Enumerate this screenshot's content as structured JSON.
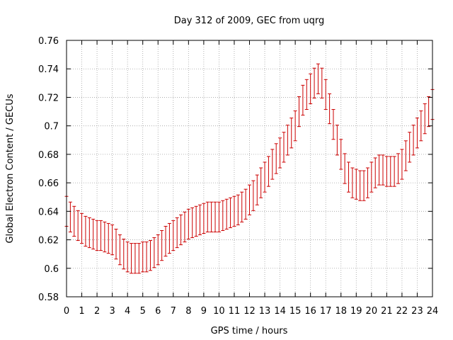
{
  "chart_data": {
    "type": "scatter",
    "title": "Day 312 of 2009, GEC from uqrg",
    "xlabel": "GPS time / hours",
    "ylabel": "Global Electron Content / GECUs",
    "xlim": [
      0,
      24
    ],
    "ylim": [
      0.58,
      0.76
    ],
    "xticks": [
      "0",
      "1",
      "2",
      "3",
      "4",
      "5",
      "6",
      "7",
      "8",
      "9",
      "10",
      "11",
      "12",
      "13",
      "14",
      "15",
      "16",
      "17",
      "18",
      "19",
      "20",
      "21",
      "22",
      "23",
      "24"
    ],
    "yticks": [
      "0.58",
      "0.6",
      "0.62",
      "0.64",
      "0.66",
      "0.68",
      "0.7",
      "0.72",
      "0.74",
      "0.76"
    ],
    "grid": true,
    "series_color": "#cc0000",
    "error_halfwidth": 0.0105,
    "x": [
      0,
      0.25,
      0.5,
      0.75,
      1,
      1.25,
      1.5,
      1.75,
      2,
      2.25,
      2.5,
      2.75,
      3,
      3.25,
      3.5,
      3.75,
      4,
      4.25,
      4.5,
      4.75,
      5,
      5.25,
      5.5,
      5.75,
      6,
      6.25,
      6.5,
      6.75,
      7,
      7.25,
      7.5,
      7.75,
      8,
      8.25,
      8.5,
      8.75,
      9,
      9.25,
      9.5,
      9.75,
      10,
      10.25,
      10.5,
      10.75,
      11,
      11.25,
      11.5,
      11.75,
      12,
      12.25,
      12.5,
      12.75,
      13,
      13.25,
      13.5,
      13.75,
      14,
      14.25,
      14.5,
      14.75,
      15,
      15.25,
      15.5,
      15.75,
      16,
      16.25,
      16.5,
      16.75,
      17,
      17.25,
      17.5,
      17.75,
      18,
      18.25,
      18.5,
      18.75,
      19,
      19.25,
      19.5,
      19.75,
      20,
      20.25,
      20.5,
      20.75,
      21,
      21.25,
      21.5,
      21.75,
      22,
      22.25,
      22.5,
      22.75,
      23,
      23.25,
      23.5,
      23.75,
      24
    ],
    "y": [
      0.64,
      0.636,
      0.633,
      0.63,
      0.628,
      0.626,
      0.625,
      0.624,
      0.623,
      0.623,
      0.622,
      0.621,
      0.62,
      0.617,
      0.613,
      0.61,
      0.608,
      0.607,
      0.607,
      0.607,
      0.608,
      0.608,
      0.609,
      0.611,
      0.613,
      0.616,
      0.619,
      0.621,
      0.623,
      0.625,
      0.627,
      0.629,
      0.631,
      0.632,
      0.633,
      0.634,
      0.635,
      0.636,
      0.636,
      0.636,
      0.636,
      0.637,
      0.638,
      0.639,
      0.64,
      0.641,
      0.643,
      0.645,
      0.648,
      0.651,
      0.655,
      0.66,
      0.664,
      0.668,
      0.673,
      0.677,
      0.681,
      0.685,
      0.69,
      0.695,
      0.7,
      0.71,
      0.718,
      0.722,
      0.726,
      0.73,
      0.733,
      0.73,
      0.722,
      0.712,
      0.701,
      0.69,
      0.68,
      0.67,
      0.664,
      0.66,
      0.659,
      0.658,
      0.658,
      0.66,
      0.664,
      0.667,
      0.669,
      0.669,
      0.668,
      0.668,
      0.668,
      0.67,
      0.673,
      0.679,
      0.685,
      0.69,
      0.695,
      0.7,
      0.705,
      0.71,
      0.715
    ]
  }
}
